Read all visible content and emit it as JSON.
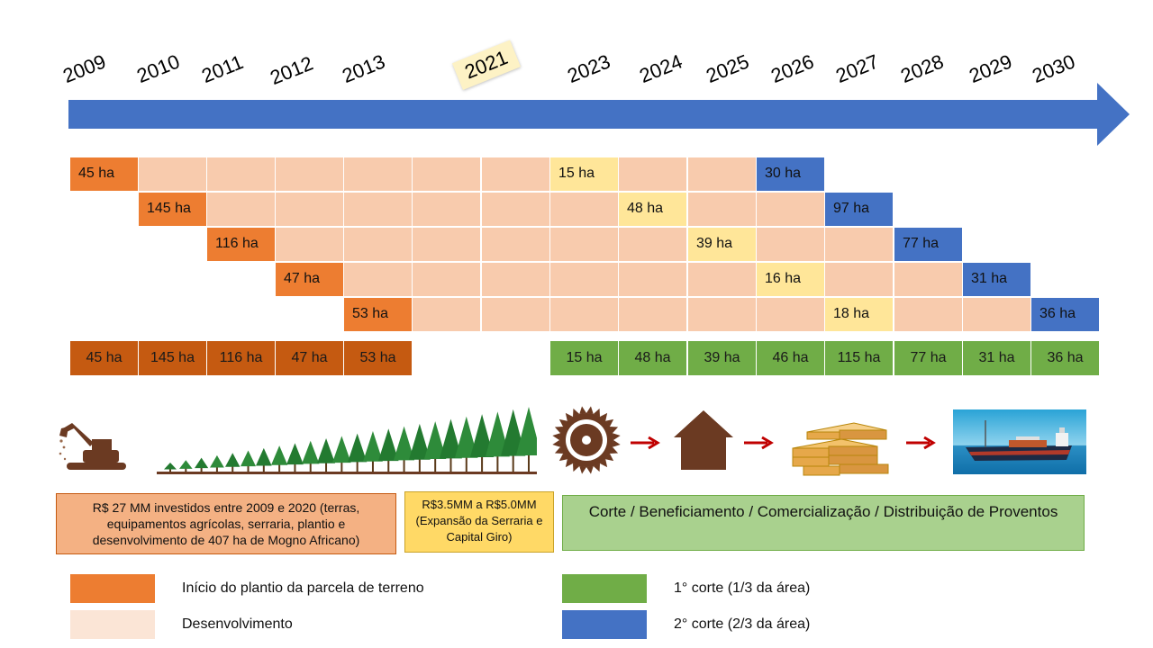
{
  "years": [
    "2009",
    "2010",
    "2011",
    "2012",
    "2013",
    "2021",
    "2023",
    "2024",
    "2025",
    "2026",
    "2027",
    "2028",
    "2029",
    "2030"
  ],
  "grid_rows": [
    {
      "start_label": "45 ha",
      "first_cut": "15 ha",
      "second_cut": "30 ha"
    },
    {
      "start_label": "145 ha",
      "first_cut": "48 ha",
      "second_cut": "97 ha"
    },
    {
      "start_label": "116 ha",
      "first_cut": "39 ha",
      "second_cut": "77 ha"
    },
    {
      "start_label": "47 ha",
      "first_cut": "16 ha",
      "second_cut": "31 ha"
    },
    {
      "start_label": "53 ha",
      "first_cut": "18 ha",
      "second_cut": "36 ha"
    }
  ],
  "planting_totals": [
    "45 ha",
    "145 ha",
    "116 ha",
    "47 ha",
    "53 ha"
  ],
  "harvest_totals": [
    "15 ha",
    "48 ha",
    "39 ha",
    "46 ha",
    "115 ha",
    "77 ha",
    "31 ha",
    "36 ha"
  ],
  "investment_box": "R$ 27 MM investidos entre 2009 e 2020 (terras, equipamentos agrícolas, serraria, plantio e desenvolvimento de 407 ha de Mogno Africano)",
  "expansion_box": "R$3.5MM a R$5.0MM (Expansão da Serraria e Capital Giro)",
  "harvest_box": "Corte / Beneficiamento / Comercialização / Distribuição de Proventos",
  "legend": {
    "planting": "Início do plantio da parcela de terreno",
    "development": "Desenvolvimento",
    "first_cut": "1° corte (1/3 da área)",
    "second_cut": "2° corte (2/3 da área)"
  },
  "icons": [
    "excavator-icon",
    "tree-line-icon",
    "saw-blade-icon",
    "house-icon",
    "lumber-icon",
    "cargo-ship-icon"
  ],
  "colors": {
    "arrow": "#4472c4",
    "planting": "#ed7d31",
    "development": "#f8cbad",
    "first_cut_cell": "#ffe699",
    "second_cut": "#4472c4",
    "planting_total": "#c55a11",
    "harvest_total": "#70ad47",
    "investment_box": "#f4b183",
    "expansion_box": "#ffd966",
    "harvest_box": "#a9d18e",
    "legend_development": "#fbe5d6"
  }
}
